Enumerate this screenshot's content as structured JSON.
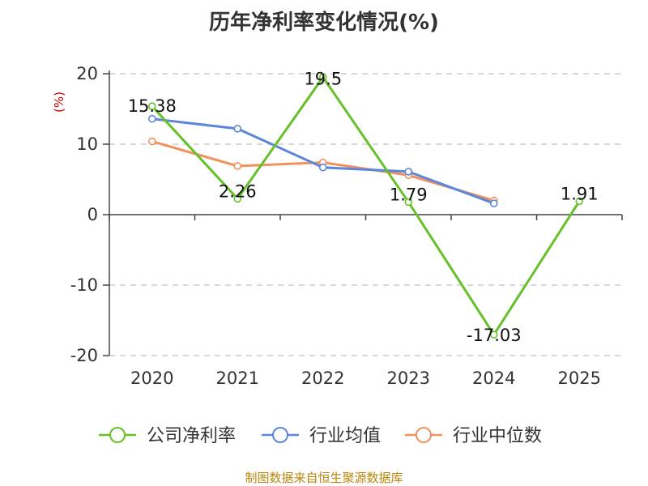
{
  "chart_data": {
    "type": "line",
    "title": "历年净利率变化情况(%)",
    "ylabel": "(%)",
    "xlabel": "",
    "categories": [
      "2020",
      "2021",
      "2022",
      "2023",
      "2024",
      "2025"
    ],
    "ylim": [
      -20,
      20
    ],
    "yticks": [
      20,
      10,
      0,
      -10,
      -20
    ],
    "ytick_labels": [
      "20",
      "10",
      "0",
      "-10",
      "-20"
    ],
    "grid": true,
    "legend_position": "bottom",
    "series": [
      {
        "name": "公司净利率",
        "color": "#66c129",
        "values": [
          15.38,
          2.26,
          19.5,
          1.79,
          -17.03,
          1.91
        ],
        "labels": [
          "15.38",
          "2.26",
          "19.5",
          "1.79",
          "-17.03",
          "1.91"
        ]
      },
      {
        "name": "行业均值",
        "color": "#5a87dc",
        "values": [
          13.6,
          12.2,
          6.7,
          6.1,
          1.6,
          null
        ]
      },
      {
        "name": "行业中位数",
        "color": "#f2915c",
        "values": [
          10.4,
          6.9,
          7.4,
          5.6,
          2.0,
          null
        ]
      }
    ]
  },
  "source": "制图数据来自恒生聚源数据库"
}
